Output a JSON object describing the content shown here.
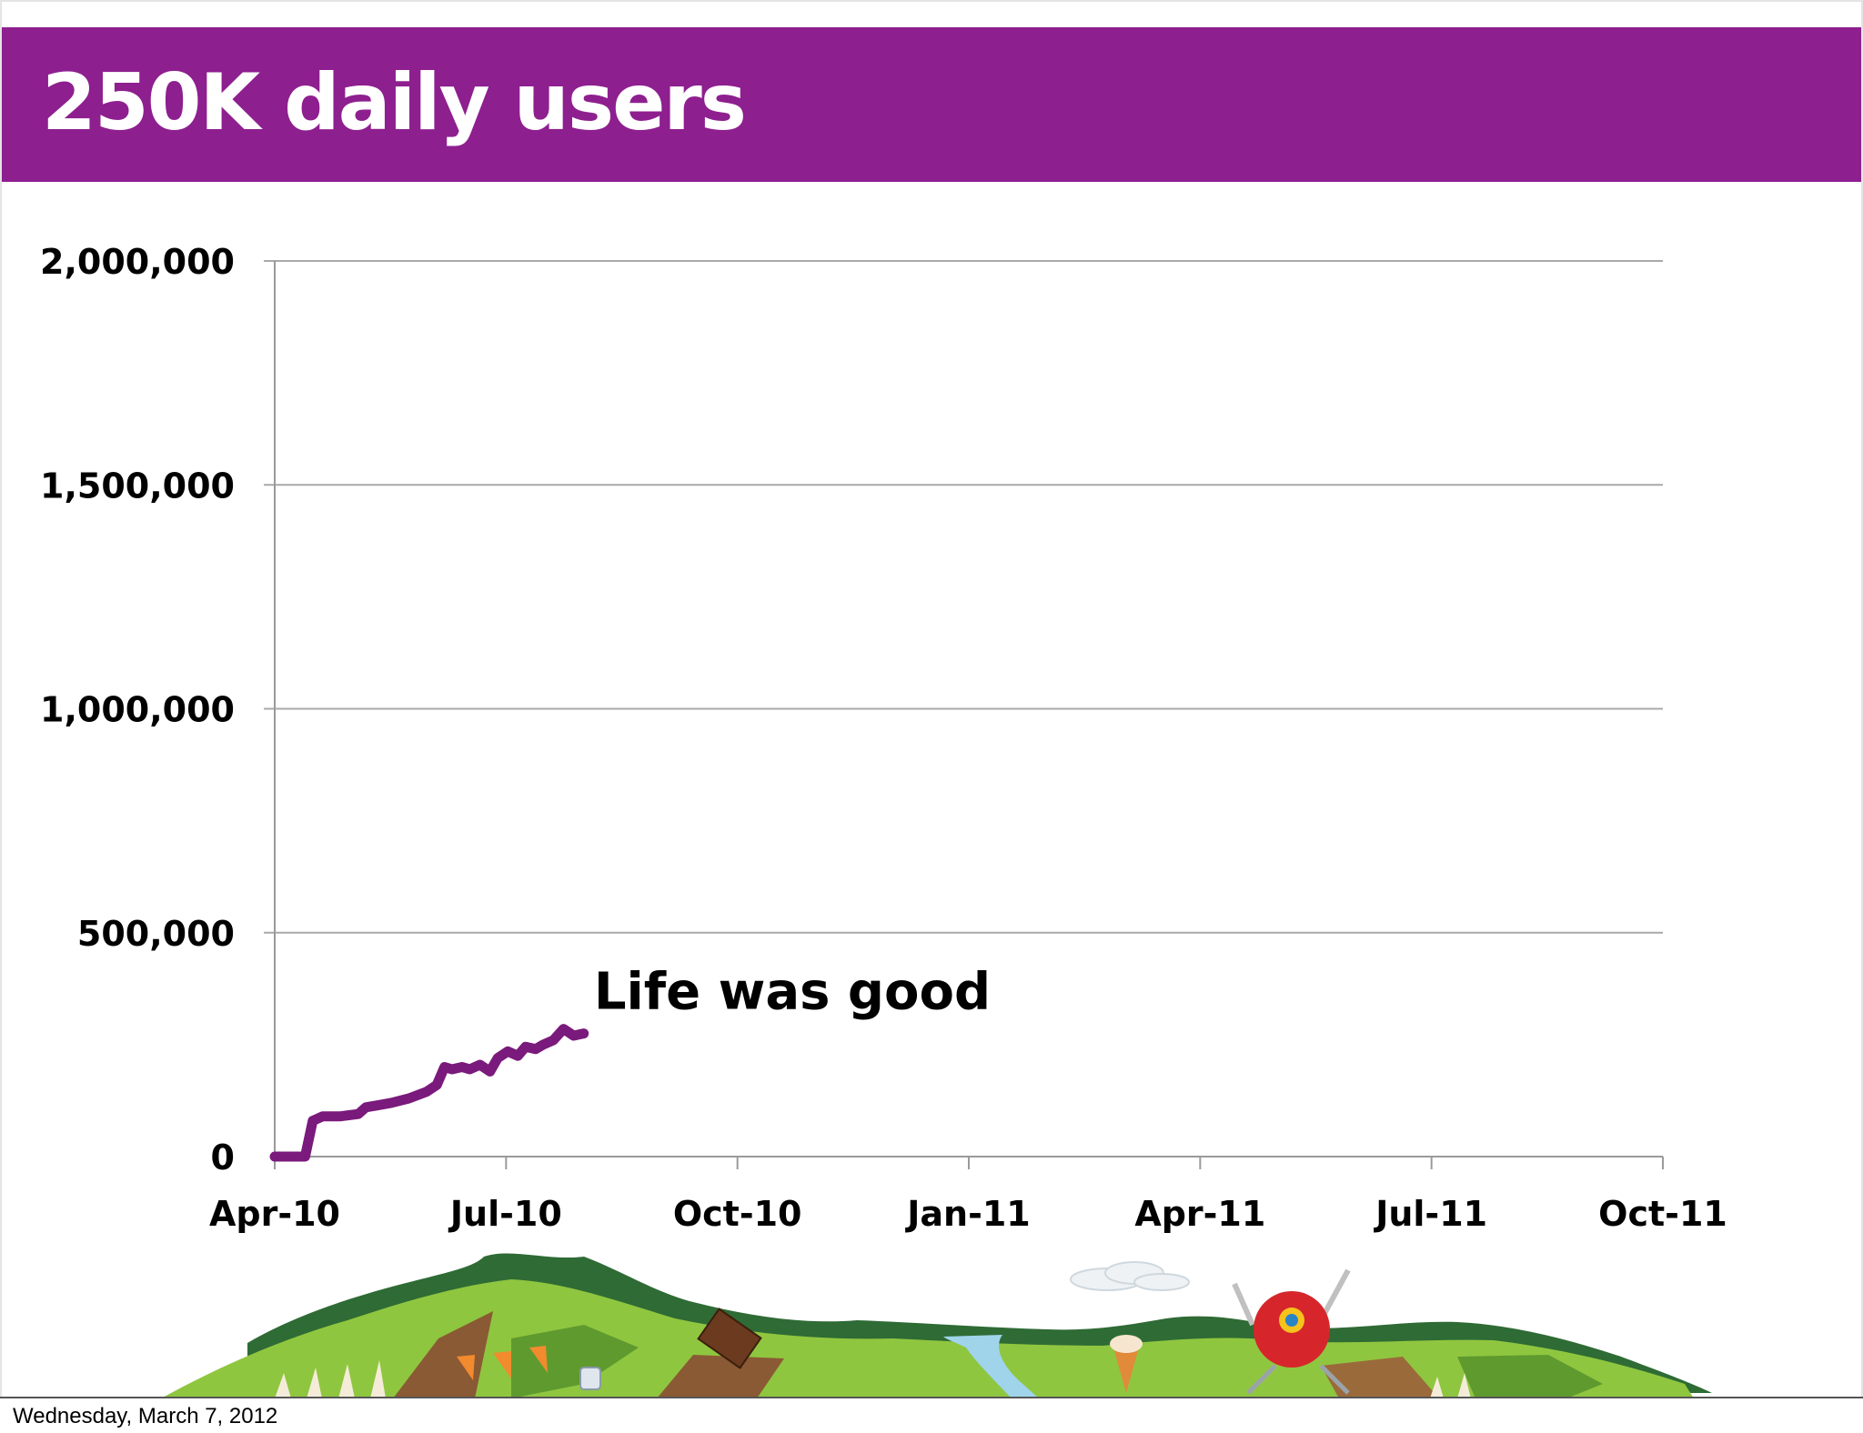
{
  "slide": {
    "title": "250K daily users",
    "footer_date": "Wednesday, March 7, 2012"
  },
  "colors": {
    "title_bar": "#8e1f8f",
    "series_line": "#7a1a7c",
    "gridline": "#a9a9a9",
    "text": "#000000"
  },
  "chart_data": {
    "type": "line",
    "title": "",
    "xlabel": "",
    "ylabel": "",
    "x_tick_labels": [
      "Apr-10",
      "Jul-10",
      "Oct-10",
      "Jan-11",
      "Apr-11",
      "Jul-11",
      "Oct-11"
    ],
    "x_range": [
      "2010-04-01",
      "2011-10-01"
    ],
    "y_tick_labels": [
      "0",
      "500,000",
      "1,000,000",
      "1,500,000",
      "2,000,000"
    ],
    "ylim": [
      0,
      2000000
    ],
    "grid": "horizontal",
    "series": [
      {
        "x": [
          "2010-04-01",
          "2010-04-08",
          "2010-04-13",
          "2010-04-16",
          "2010-04-20",
          "2010-04-27",
          "2010-05-04",
          "2010-05-07",
          "2010-05-12",
          "2010-05-17",
          "2010-05-24",
          "2010-05-31",
          "2010-06-04",
          "2010-06-07",
          "2010-06-10",
          "2010-06-14",
          "2010-06-17",
          "2010-06-21",
          "2010-06-25",
          "2010-06-28",
          "2010-07-02",
          "2010-07-06",
          "2010-07-09",
          "2010-07-13",
          "2010-07-16",
          "2010-07-20",
          "2010-07-24",
          "2010-07-28",
          "2010-08-01"
        ],
        "values": [
          0,
          0,
          0,
          80000,
          90000,
          90000,
          95000,
          110000,
          115000,
          120000,
          130000,
          145000,
          160000,
          200000,
          195000,
          200000,
          195000,
          205000,
          190000,
          220000,
          235000,
          225000,
          245000,
          240000,
          250000,
          260000,
          285000,
          270000,
          275000
        ]
      }
    ],
    "annotations": [
      {
        "text": "Life was good",
        "x": "2010-08-05",
        "y": 330000
      }
    ]
  }
}
